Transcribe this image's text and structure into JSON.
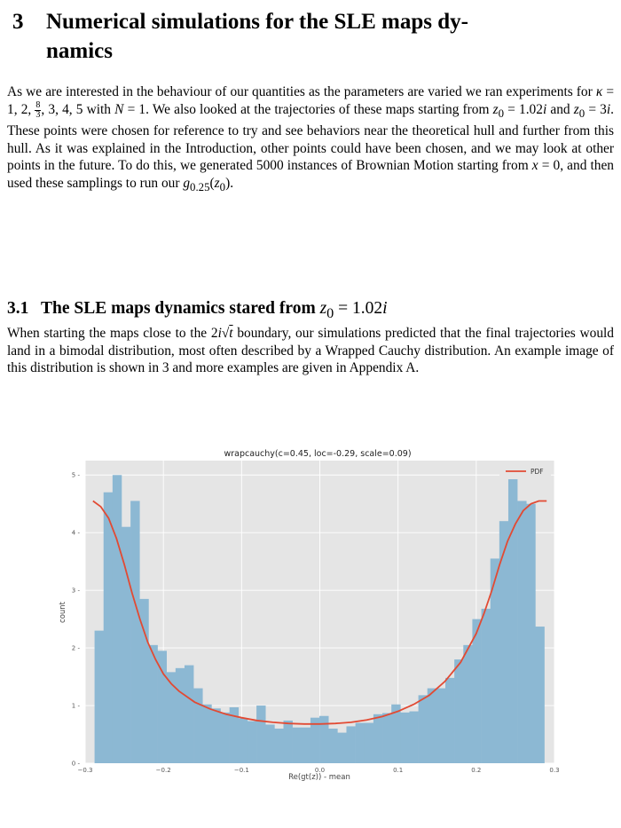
{
  "section": {
    "number": "3",
    "title_line1": "Numerical simulations for the SLE maps dy-",
    "title_line2": "namics"
  },
  "intro_paragraph": {
    "t1": "As we are interested in the behaviour of our quantities as the parameters are varied we ran experiments for ",
    "kappa": "κ",
    "t2": " = 1, 2, ",
    "frac_num": "8",
    "frac_den": "3",
    "t3": ", 3, 4, 5 with ",
    "N": "N",
    "t4": " = 1. We also looked at the trajectories of these maps starting from ",
    "z0a": "z",
    "sub0a": "0",
    "t5": " = 1.02",
    "i1": "i",
    "t6": " and ",
    "z0b": "z",
    "sub0b": "0",
    "t7": " = 3",
    "i2": "i",
    "t8": ". These points were chosen for reference to try and see behaviors near the theoretical hull and further from this hull. As it was explained in the Introduction, other points could have been chosen, and we may look at other points in the future. To do this, we generated 5000 instances of Brownian Motion starting from ",
    "x": "x",
    "t9": " = 0, and then used these samplings to run our ",
    "g": "g",
    "gsub": "0.25",
    "t10": "(",
    "z0c": "z",
    "sub0c": "0",
    "t11": ")."
  },
  "subsection": {
    "number": "3.1",
    "title_text": "The SLE maps dynamics stared from ",
    "z": "z",
    "zsub": "0",
    "eq": " = 1.02",
    "i": "i"
  },
  "sub_paragraph": {
    "t1": "When starting the maps close to the 2",
    "i": "i",
    "sqrt": "√",
    "t": "t",
    "t2": " boundary, our simulations predicted that the final trajectories would land in a bimodal distribution, most often described by a Wrapped Cauchy distribution. An example image of this distribution is shown in 3 and more examples are given in Appendix A."
  },
  "chart_data": {
    "type": "bar",
    "title": "wrapcauchy(c=0.45, loc=-0.29, scale=0.09)",
    "xlabel": "Re(gt(z)) - mean",
    "ylabel": "count",
    "xlim": [
      -0.3,
      0.3
    ],
    "ylim": [
      0,
      5.25
    ],
    "xticks": [
      "−0.3",
      "−0.2",
      "−0.1",
      "0.0",
      "0.1",
      "0.2",
      "0.3"
    ],
    "xtick_values": [
      -0.3,
      -0.2,
      -0.1,
      0.0,
      0.1,
      0.2,
      0.3
    ],
    "yticks": [
      "0",
      "1",
      "2",
      "3",
      "4",
      "5"
    ],
    "ytick_values": [
      0,
      1,
      2,
      3,
      4,
      5
    ],
    "bin_start": -0.288,
    "bin_width": 0.0115,
    "bar_color": "#8cb8d3",
    "curve_color": "#e24a33",
    "background_color": "#e5e5e5",
    "grid": true,
    "legend": {
      "placement": "top-right",
      "entries": [
        "PDF"
      ]
    },
    "values": [
      2.3,
      4.7,
      5.0,
      4.1,
      4.55,
      2.85,
      2.05,
      1.95,
      1.58,
      1.65,
      1.7,
      1.3,
      1.02,
      0.95,
      0.88,
      0.97,
      0.78,
      0.73,
      1.0,
      0.67,
      0.6,
      0.74,
      0.62,
      0.62,
      0.79,
      0.82,
      0.6,
      0.53,
      0.64,
      0.7,
      0.7,
      0.85,
      0.87,
      1.02,
      0.88,
      0.9,
      1.18,
      1.3,
      1.3,
      1.48,
      1.8,
      2.05,
      2.5,
      2.68,
      3.55,
      4.2,
      5.05,
      4.55,
      4.5,
      2.37
    ],
    "pdf_curve": {
      "name": "PDF",
      "x": [
        -0.29,
        -0.28,
        -0.27,
        -0.26,
        -0.25,
        -0.24,
        -0.23,
        -0.22,
        -0.21,
        -0.2,
        -0.19,
        -0.18,
        -0.16,
        -0.14,
        -0.12,
        -0.1,
        -0.08,
        -0.06,
        -0.04,
        -0.02,
        0.0,
        0.02,
        0.04,
        0.06,
        0.08,
        0.1,
        0.12,
        0.14,
        0.16,
        0.18,
        0.2,
        0.21,
        0.22,
        0.23,
        0.24,
        0.25,
        0.26,
        0.27,
        0.28,
        0.29
      ],
      "y": [
        4.55,
        4.45,
        4.25,
        3.9,
        3.45,
        2.95,
        2.5,
        2.1,
        1.8,
        1.55,
        1.38,
        1.25,
        1.06,
        0.94,
        0.85,
        0.79,
        0.74,
        0.71,
        0.69,
        0.68,
        0.68,
        0.69,
        0.71,
        0.75,
        0.81,
        0.9,
        1.02,
        1.18,
        1.42,
        1.75,
        2.25,
        2.6,
        3.0,
        3.45,
        3.85,
        4.15,
        4.38,
        4.5,
        4.55,
        4.55
      ]
    }
  }
}
